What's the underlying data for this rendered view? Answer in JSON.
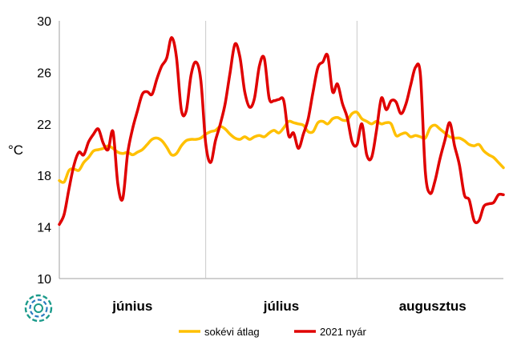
{
  "chart_data": {
    "type": "line",
    "ylabel": "°C",
    "ylim": [
      10,
      30
    ],
    "yticks": [
      10,
      14,
      18,
      22,
      26,
      30
    ],
    "grid": "vertical separators between months",
    "legend_position": "bottom",
    "x_unit": "day index (1 June = 0)",
    "xlim": [
      0,
      91
    ],
    "month_labels": [
      {
        "label": "június",
        "center": 15
      },
      {
        "label": "július",
        "center": 45.5
      },
      {
        "label": "augusztus",
        "center": 76.5
      }
    ],
    "month_separators": [
      30,
      61
    ],
    "series": [
      {
        "name": "sokévi átlag",
        "color": "#ffc000",
        "x": [
          0,
          1,
          2,
          3,
          4,
          5,
          6,
          7,
          8,
          9,
          10,
          11,
          12,
          13,
          14,
          15,
          16,
          17,
          18,
          19,
          20,
          21,
          22,
          23,
          24,
          25,
          26,
          27,
          28,
          29,
          30,
          31,
          32,
          33,
          34,
          35,
          36,
          37,
          38,
          39,
          40,
          41,
          42,
          43,
          44,
          45,
          46,
          47,
          48,
          49,
          50,
          51,
          52,
          53,
          54,
          55,
          56,
          57,
          58,
          59,
          60,
          61,
          62,
          63,
          64,
          65,
          66,
          67,
          68,
          69,
          70,
          71,
          72,
          73,
          74,
          75,
          76,
          77,
          78,
          79,
          80,
          81,
          82,
          83,
          84,
          85,
          86,
          87,
          88,
          89,
          90,
          91
        ],
        "values": [
          17.6,
          17.5,
          18.4,
          18.5,
          18.4,
          19.0,
          19.4,
          19.9,
          20.0,
          20.1,
          20.3,
          20.1,
          19.8,
          19.7,
          19.8,
          19.6,
          19.8,
          20.0,
          20.4,
          20.8,
          20.9,
          20.7,
          20.2,
          19.6,
          19.7,
          20.3,
          20.7,
          20.8,
          20.8,
          20.9,
          21.2,
          21.4,
          21.5,
          21.8,
          21.6,
          21.2,
          20.9,
          20.8,
          21.0,
          20.8,
          21.0,
          21.1,
          21.0,
          21.3,
          21.5,
          21.3,
          21.7,
          22.2,
          22.1,
          22.0,
          21.9,
          21.4,
          21.4,
          22.1,
          22.2,
          22.0,
          22.4,
          22.5,
          22.3,
          22.3,
          22.8,
          22.9,
          22.4,
          22.2,
          22.0,
          22.2,
          22.0,
          22.1,
          22.0,
          21.1,
          21.2,
          21.3,
          21.0,
          21.1,
          21.0,
          20.9,
          21.7,
          21.9,
          21.6,
          21.3,
          21.0,
          20.9,
          20.9,
          20.7,
          20.4,
          20.3,
          20.4,
          19.9,
          19.6,
          19.4,
          19.0,
          18.6
        ]
      },
      {
        "name": "2021 nyár",
        "color": "#e00000",
        "x": [
          0,
          1,
          2,
          3,
          4,
          5,
          6,
          7,
          8,
          9,
          10,
          11,
          12,
          13,
          14,
          15,
          16,
          17,
          18,
          19,
          20,
          21,
          22,
          23,
          24,
          25,
          26,
          27,
          28,
          29,
          30,
          31,
          32,
          33,
          34,
          35,
          36,
          37,
          38,
          39,
          40,
          41,
          42,
          43,
          44,
          45,
          46,
          47,
          48,
          49,
          50,
          51,
          52,
          53,
          54,
          55,
          56,
          57,
          58,
          59,
          60,
          61,
          62,
          63,
          64,
          65,
          66,
          67,
          68,
          69,
          70,
          71,
          72,
          73,
          74,
          75,
          76,
          77,
          78,
          79,
          80,
          81,
          82,
          83,
          84,
          85,
          86,
          87,
          88,
          89,
          90,
          91
        ],
        "values": [
          14.2,
          15.0,
          17.0,
          18.8,
          19.8,
          19.6,
          20.6,
          21.2,
          21.6,
          20.5,
          20.0,
          21.4,
          17.3,
          16.2,
          19.7,
          21.6,
          23.0,
          24.3,
          24.5,
          24.3,
          25.5,
          26.5,
          27.1,
          28.7,
          27.2,
          23.1,
          23.0,
          25.8,
          26.8,
          25.4,
          20.5,
          19.0,
          20.7,
          22.0,
          23.6,
          26.0,
          28.2,
          27.2,
          24.5,
          23.3,
          24.0,
          26.5,
          27.1,
          24.0,
          23.8,
          23.9,
          23.8,
          21.1,
          21.3,
          20.1,
          21.2,
          22.4,
          24.5,
          26.4,
          26.8,
          27.3,
          24.5,
          25.1,
          23.6,
          22.5,
          20.6,
          20.4,
          22.0,
          19.6,
          19.4,
          21.5,
          24.0,
          23.1,
          23.8,
          23.7,
          22.8,
          23.5,
          25.0,
          26.4,
          25.8,
          18.3,
          16.6,
          17.6,
          19.3,
          20.7,
          22.1,
          20.3,
          18.8,
          16.5,
          16.1,
          14.5,
          14.5,
          15.6,
          15.8,
          15.9,
          16.5,
          16.5
        ]
      }
    ]
  }
}
